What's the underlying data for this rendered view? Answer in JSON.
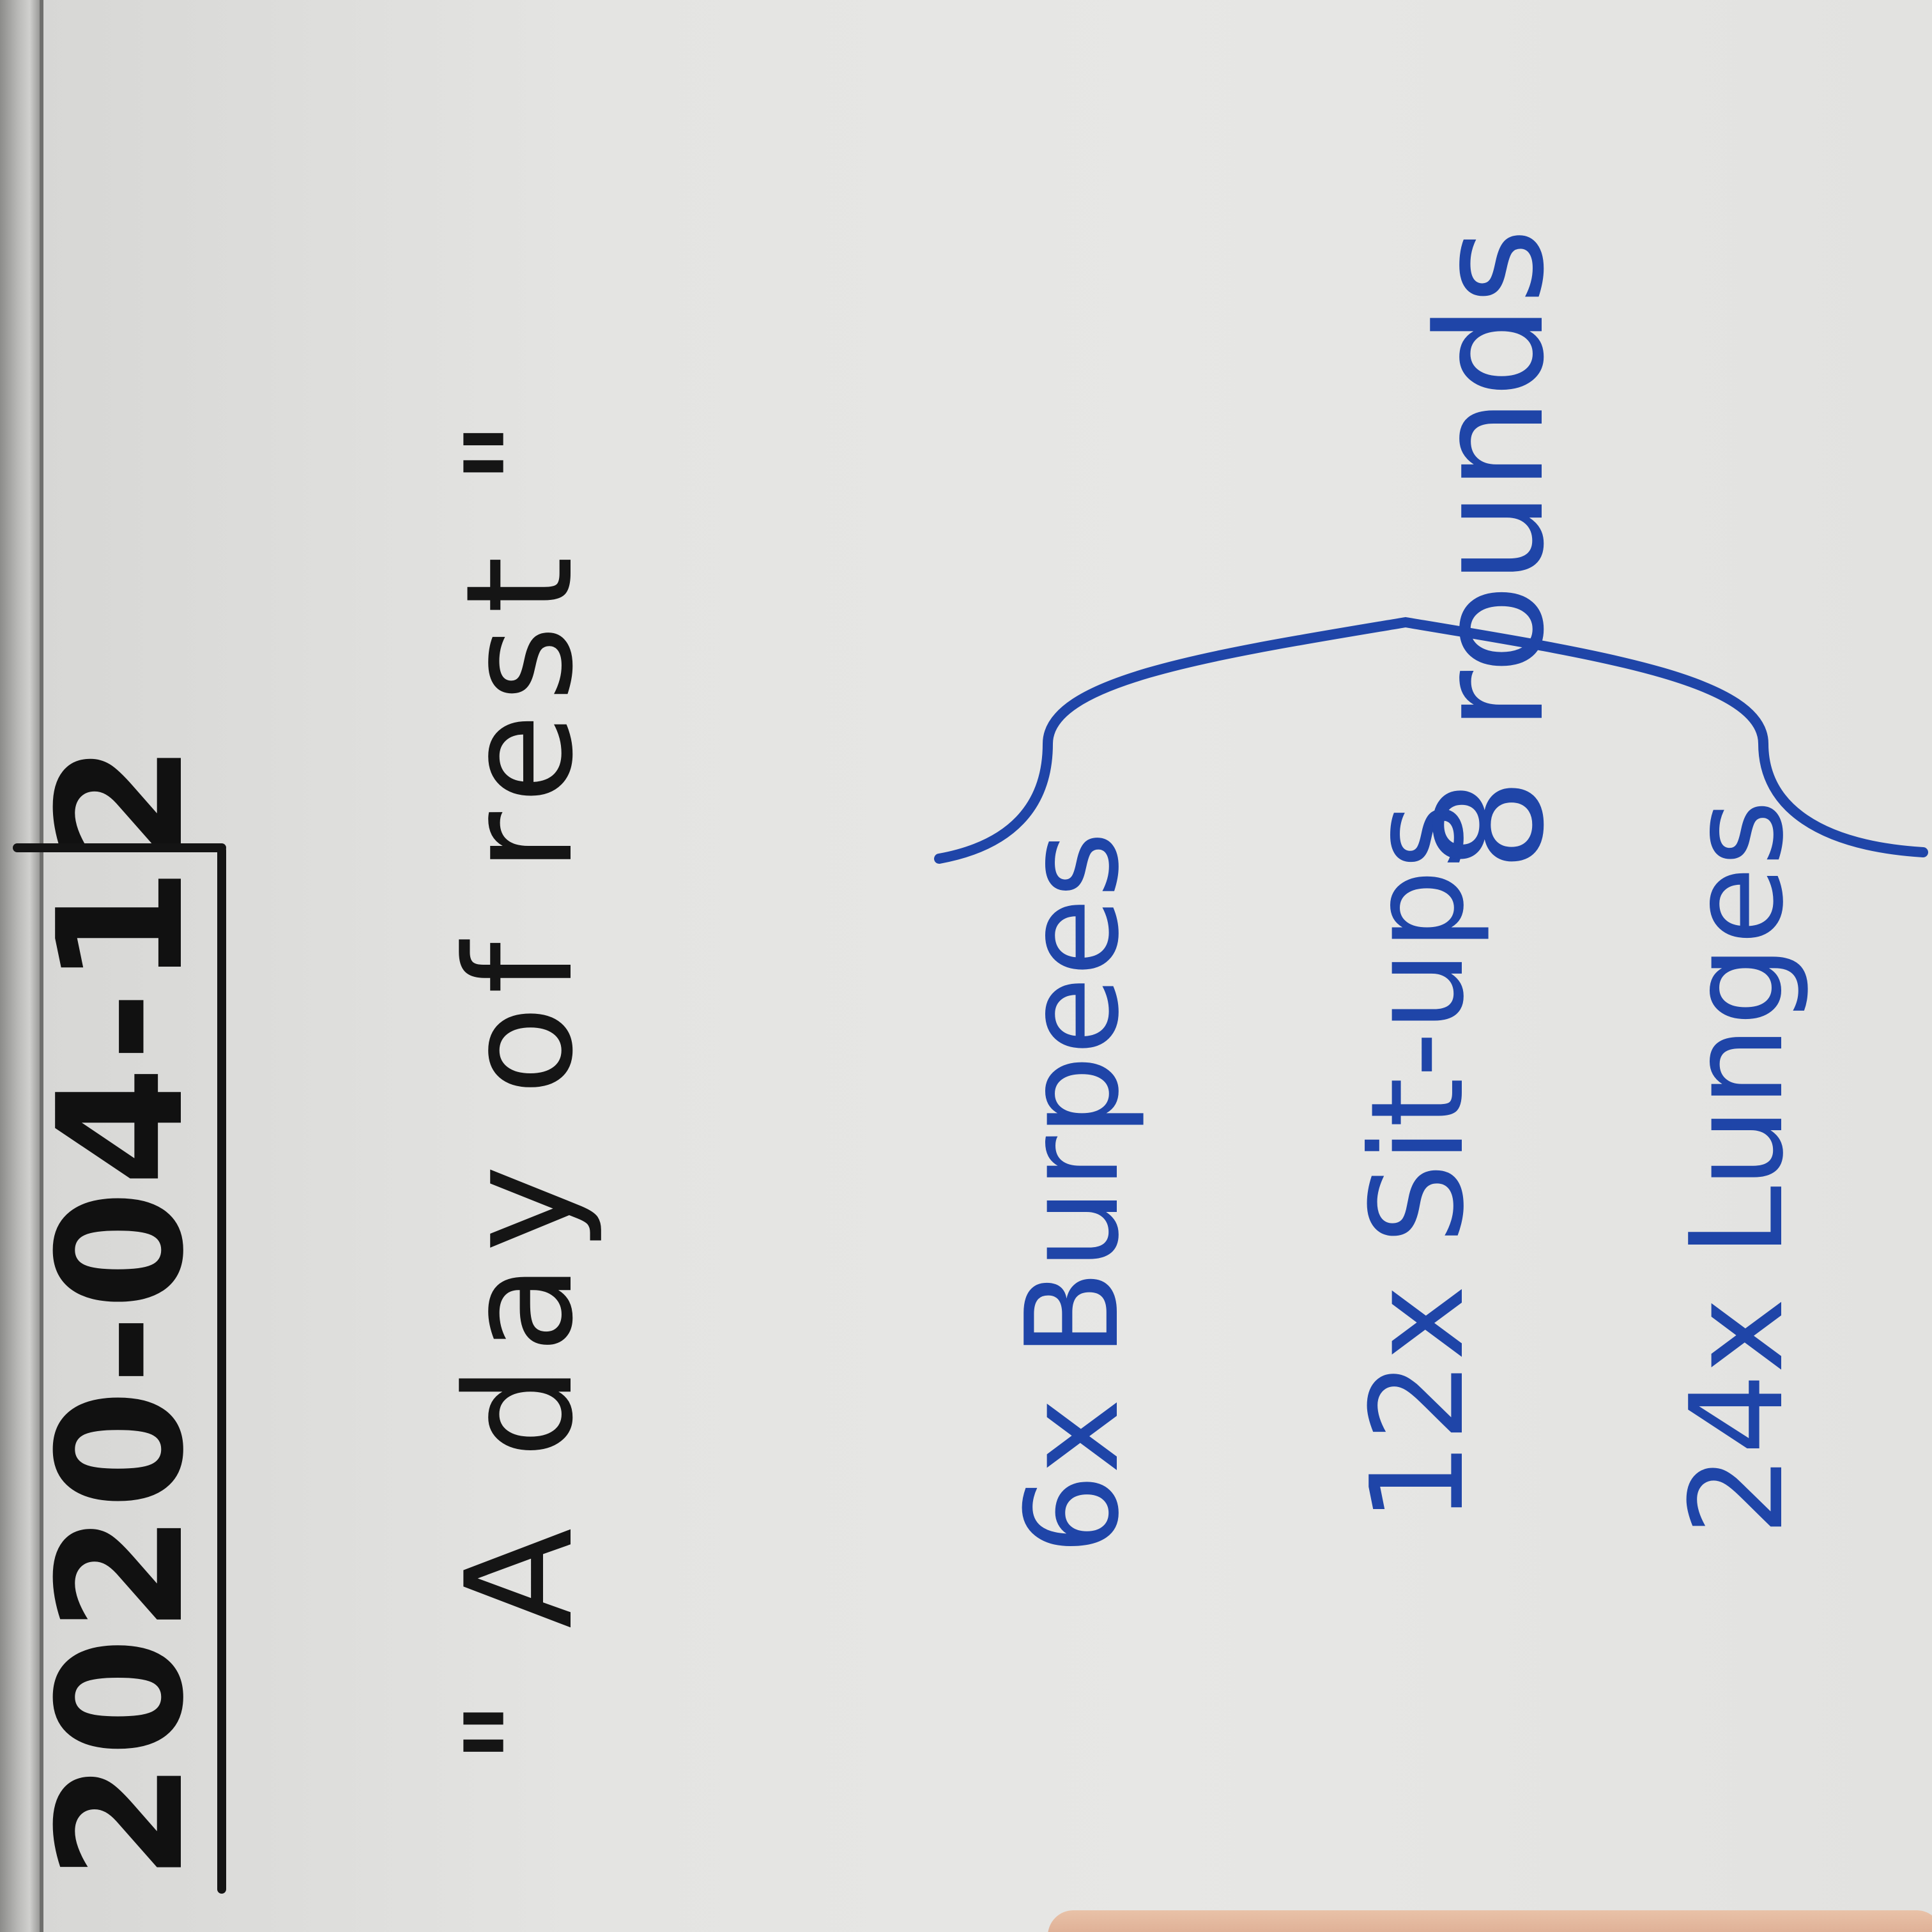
{
  "board": {
    "date": "2020-04-12",
    "quote": "\" A day of rest \"",
    "exercises": [
      {
        "label": "6x Burpees"
      },
      {
        "label": "12x Sit-ups"
      },
      {
        "label": "24x Lunges"
      }
    ],
    "rounds": "8 rounds"
  },
  "colors": {
    "ink_black": "#111111",
    "ink_blue": "#1f45a8",
    "board": "#e6e6e4"
  }
}
